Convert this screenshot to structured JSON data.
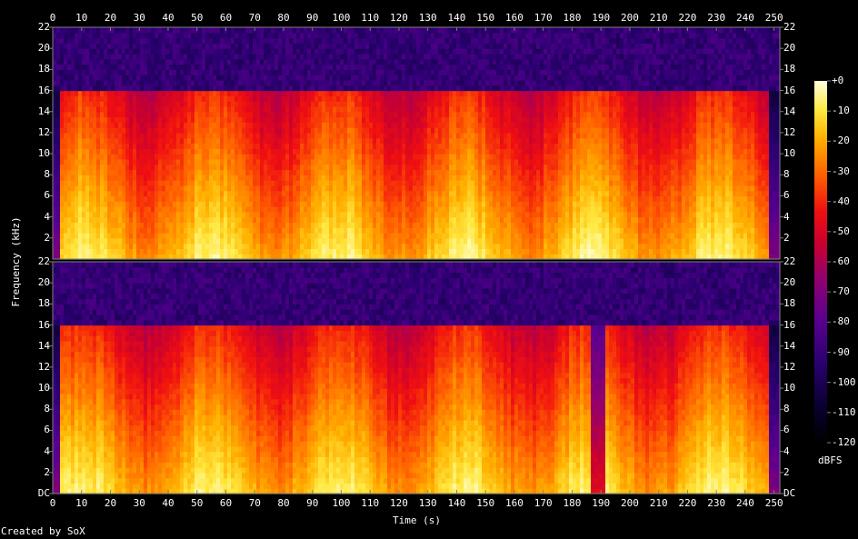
{
  "footer": {
    "credit": "Created by SoX"
  },
  "chart_data": {
    "type": "heatmap",
    "title": "",
    "xlabel": "Time (s)",
    "ylabel": "Frequency (kHz)",
    "xlim": [
      0,
      252
    ],
    "ylim": [
      0,
      22
    ],
    "x_ticks": [
      "0",
      "10",
      "20",
      "30",
      "40",
      "50",
      "60",
      "70",
      "80",
      "90",
      "100",
      "110",
      "120",
      "130",
      "140",
      "150",
      "160",
      "170",
      "180",
      "190",
      "200",
      "210",
      "220",
      "230",
      "240",
      "250"
    ],
    "y_ticks": [
      "DC",
      "2",
      "4",
      "6",
      "8",
      "10",
      "12",
      "14",
      "16",
      "18",
      "20",
      "22"
    ],
    "channels": 2,
    "colorbar": {
      "label": "dBFS",
      "range": [
        -120,
        0
      ],
      "ticks": [
        "+0",
        "-10",
        "-20",
        "-30",
        "-40",
        "-50",
        "-60",
        "-70",
        "-80",
        "-90",
        "-100",
        "-110",
        "-120"
      ]
    },
    "colors": {
      "background": "#000000",
      "axis": "#7f7f7f",
      "text": "#ffffff"
    }
  }
}
